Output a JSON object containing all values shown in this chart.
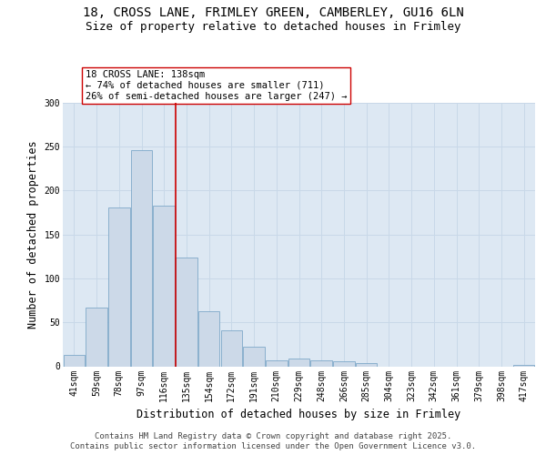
{
  "title_line1": "18, CROSS LANE, FRIMLEY GREEN, CAMBERLEY, GU16 6LN",
  "title_line2": "Size of property relative to detached houses in Frimley",
  "xlabel": "Distribution of detached houses by size in Frimley",
  "ylabel": "Number of detached properties",
  "categories": [
    "41sqm",
    "59sqm",
    "78sqm",
    "97sqm",
    "116sqm",
    "135sqm",
    "154sqm",
    "172sqm",
    "191sqm",
    "210sqm",
    "229sqm",
    "248sqm",
    "266sqm",
    "285sqm",
    "304sqm",
    "323sqm",
    "342sqm",
    "361sqm",
    "379sqm",
    "398sqm",
    "417sqm"
  ],
  "values": [
    13,
    67,
    181,
    246,
    183,
    124,
    63,
    41,
    22,
    7,
    9,
    7,
    6,
    4,
    0,
    0,
    0,
    0,
    0,
    0,
    2
  ],
  "bar_color": "#ccd9e8",
  "bar_edge_color": "#7ea8c9",
  "grid_color": "#c8d8e8",
  "background_color": "#dde8f3",
  "annotation_line_color": "#cc0000",
  "annotation_box_text": "18 CROSS LANE: 138sqm\n← 74% of detached houses are smaller (711)\n26% of semi-detached houses are larger (247) →",
  "annotation_box_color": "#ffffff",
  "annotation_box_edge_color": "#cc0000",
  "ylim": [
    0,
    300
  ],
  "yticks": [
    0,
    50,
    100,
    150,
    200,
    250,
    300
  ],
  "footer_line1": "Contains HM Land Registry data © Crown copyright and database right 2025.",
  "footer_line2": "Contains public sector information licensed under the Open Government Licence v3.0.",
  "title_fontsize": 10,
  "subtitle_fontsize": 9,
  "axis_label_fontsize": 8.5,
  "tick_fontsize": 7,
  "annot_fontsize": 7.5,
  "footer_fontsize": 6.5
}
